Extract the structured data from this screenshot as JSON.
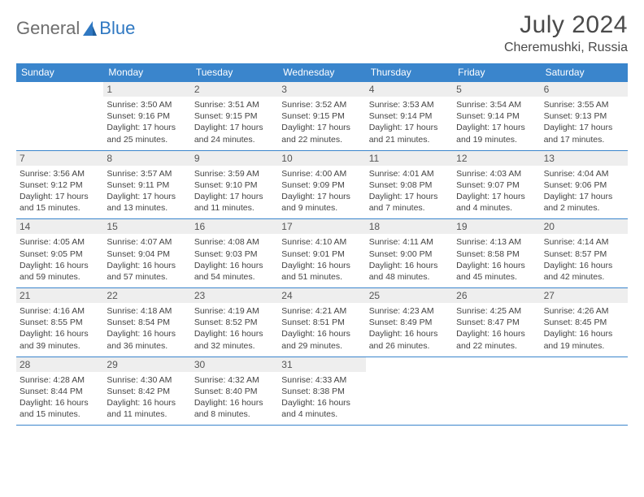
{
  "brand": {
    "part1": "General",
    "part2": "Blue"
  },
  "title": "July 2024",
  "location": "Cheremushki, Russia",
  "colors": {
    "header_bg": "#3a85cc",
    "header_text": "#ffffff",
    "daynum_bg": "#eeeeee",
    "daynum_text": "#555555",
    "body_text": "#444444",
    "rule": "#3a85cc",
    "logo_gray": "#6e6e6e",
    "logo_blue": "#2f78c2"
  },
  "day_headers": [
    "Sunday",
    "Monday",
    "Tuesday",
    "Wednesday",
    "Thursday",
    "Friday",
    "Saturday"
  ],
  "weeks": [
    [
      {
        "day": "",
        "sunrise": "",
        "sunset": "",
        "daylight": ""
      },
      {
        "day": "1",
        "sunrise": "Sunrise: 3:50 AM",
        "sunset": "Sunset: 9:16 PM",
        "daylight": "Daylight: 17 hours and 25 minutes."
      },
      {
        "day": "2",
        "sunrise": "Sunrise: 3:51 AM",
        "sunset": "Sunset: 9:15 PM",
        "daylight": "Daylight: 17 hours and 24 minutes."
      },
      {
        "day": "3",
        "sunrise": "Sunrise: 3:52 AM",
        "sunset": "Sunset: 9:15 PM",
        "daylight": "Daylight: 17 hours and 22 minutes."
      },
      {
        "day": "4",
        "sunrise": "Sunrise: 3:53 AM",
        "sunset": "Sunset: 9:14 PM",
        "daylight": "Daylight: 17 hours and 21 minutes."
      },
      {
        "day": "5",
        "sunrise": "Sunrise: 3:54 AM",
        "sunset": "Sunset: 9:14 PM",
        "daylight": "Daylight: 17 hours and 19 minutes."
      },
      {
        "day": "6",
        "sunrise": "Sunrise: 3:55 AM",
        "sunset": "Sunset: 9:13 PM",
        "daylight": "Daylight: 17 hours and 17 minutes."
      }
    ],
    [
      {
        "day": "7",
        "sunrise": "Sunrise: 3:56 AM",
        "sunset": "Sunset: 9:12 PM",
        "daylight": "Daylight: 17 hours and 15 minutes."
      },
      {
        "day": "8",
        "sunrise": "Sunrise: 3:57 AM",
        "sunset": "Sunset: 9:11 PM",
        "daylight": "Daylight: 17 hours and 13 minutes."
      },
      {
        "day": "9",
        "sunrise": "Sunrise: 3:59 AM",
        "sunset": "Sunset: 9:10 PM",
        "daylight": "Daylight: 17 hours and 11 minutes."
      },
      {
        "day": "10",
        "sunrise": "Sunrise: 4:00 AM",
        "sunset": "Sunset: 9:09 PM",
        "daylight": "Daylight: 17 hours and 9 minutes."
      },
      {
        "day": "11",
        "sunrise": "Sunrise: 4:01 AM",
        "sunset": "Sunset: 9:08 PM",
        "daylight": "Daylight: 17 hours and 7 minutes."
      },
      {
        "day": "12",
        "sunrise": "Sunrise: 4:03 AM",
        "sunset": "Sunset: 9:07 PM",
        "daylight": "Daylight: 17 hours and 4 minutes."
      },
      {
        "day": "13",
        "sunrise": "Sunrise: 4:04 AM",
        "sunset": "Sunset: 9:06 PM",
        "daylight": "Daylight: 17 hours and 2 minutes."
      }
    ],
    [
      {
        "day": "14",
        "sunrise": "Sunrise: 4:05 AM",
        "sunset": "Sunset: 9:05 PM",
        "daylight": "Daylight: 16 hours and 59 minutes."
      },
      {
        "day": "15",
        "sunrise": "Sunrise: 4:07 AM",
        "sunset": "Sunset: 9:04 PM",
        "daylight": "Daylight: 16 hours and 57 minutes."
      },
      {
        "day": "16",
        "sunrise": "Sunrise: 4:08 AM",
        "sunset": "Sunset: 9:03 PM",
        "daylight": "Daylight: 16 hours and 54 minutes."
      },
      {
        "day": "17",
        "sunrise": "Sunrise: 4:10 AM",
        "sunset": "Sunset: 9:01 PM",
        "daylight": "Daylight: 16 hours and 51 minutes."
      },
      {
        "day": "18",
        "sunrise": "Sunrise: 4:11 AM",
        "sunset": "Sunset: 9:00 PM",
        "daylight": "Daylight: 16 hours and 48 minutes."
      },
      {
        "day": "19",
        "sunrise": "Sunrise: 4:13 AM",
        "sunset": "Sunset: 8:58 PM",
        "daylight": "Daylight: 16 hours and 45 minutes."
      },
      {
        "day": "20",
        "sunrise": "Sunrise: 4:14 AM",
        "sunset": "Sunset: 8:57 PM",
        "daylight": "Daylight: 16 hours and 42 minutes."
      }
    ],
    [
      {
        "day": "21",
        "sunrise": "Sunrise: 4:16 AM",
        "sunset": "Sunset: 8:55 PM",
        "daylight": "Daylight: 16 hours and 39 minutes."
      },
      {
        "day": "22",
        "sunrise": "Sunrise: 4:18 AM",
        "sunset": "Sunset: 8:54 PM",
        "daylight": "Daylight: 16 hours and 36 minutes."
      },
      {
        "day": "23",
        "sunrise": "Sunrise: 4:19 AM",
        "sunset": "Sunset: 8:52 PM",
        "daylight": "Daylight: 16 hours and 32 minutes."
      },
      {
        "day": "24",
        "sunrise": "Sunrise: 4:21 AM",
        "sunset": "Sunset: 8:51 PM",
        "daylight": "Daylight: 16 hours and 29 minutes."
      },
      {
        "day": "25",
        "sunrise": "Sunrise: 4:23 AM",
        "sunset": "Sunset: 8:49 PM",
        "daylight": "Daylight: 16 hours and 26 minutes."
      },
      {
        "day": "26",
        "sunrise": "Sunrise: 4:25 AM",
        "sunset": "Sunset: 8:47 PM",
        "daylight": "Daylight: 16 hours and 22 minutes."
      },
      {
        "day": "27",
        "sunrise": "Sunrise: 4:26 AM",
        "sunset": "Sunset: 8:45 PM",
        "daylight": "Daylight: 16 hours and 19 minutes."
      }
    ],
    [
      {
        "day": "28",
        "sunrise": "Sunrise: 4:28 AM",
        "sunset": "Sunset: 8:44 PM",
        "daylight": "Daylight: 16 hours and 15 minutes."
      },
      {
        "day": "29",
        "sunrise": "Sunrise: 4:30 AM",
        "sunset": "Sunset: 8:42 PM",
        "daylight": "Daylight: 16 hours and 11 minutes."
      },
      {
        "day": "30",
        "sunrise": "Sunrise: 4:32 AM",
        "sunset": "Sunset: 8:40 PM",
        "daylight": "Daylight: 16 hours and 8 minutes."
      },
      {
        "day": "31",
        "sunrise": "Sunrise: 4:33 AM",
        "sunset": "Sunset: 8:38 PM",
        "daylight": "Daylight: 16 hours and 4 minutes."
      },
      {
        "day": "",
        "sunrise": "",
        "sunset": "",
        "daylight": ""
      },
      {
        "day": "",
        "sunrise": "",
        "sunset": "",
        "daylight": ""
      },
      {
        "day": "",
        "sunrise": "",
        "sunset": "",
        "daylight": ""
      }
    ]
  ]
}
